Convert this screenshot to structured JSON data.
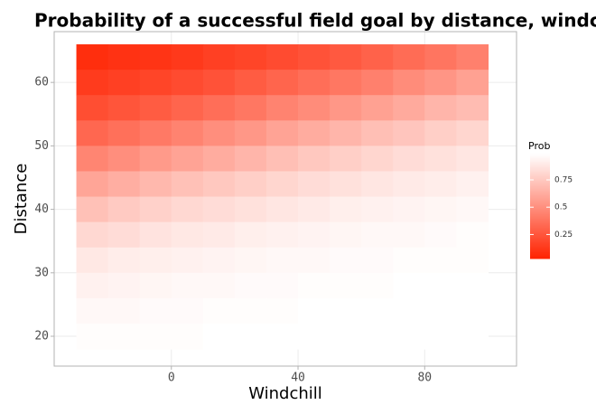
{
  "chart_data": {
    "type": "heatmap",
    "title": "Probability of a successful field goal by distance, windchill",
    "x_label": "Windchill",
    "y_label": "Distance",
    "legend_title": "Prob",
    "x": [
      -25,
      -15,
      -5,
      5,
      15,
      25,
      35,
      45,
      55,
      65,
      75,
      85,
      95
    ],
    "y": [
      64,
      60,
      56,
      52,
      48,
      44,
      40,
      36,
      32,
      28,
      24,
      20
    ],
    "values": [
      [
        0.08,
        0.1,
        0.11,
        0.13,
        0.16,
        0.18,
        0.21,
        0.24,
        0.27,
        0.31,
        0.35,
        0.39,
        0.44
      ],
      [
        0.14,
        0.16,
        0.18,
        0.21,
        0.24,
        0.28,
        0.32,
        0.36,
        0.4,
        0.44,
        0.49,
        0.53,
        0.58
      ],
      [
        0.22,
        0.25,
        0.28,
        0.32,
        0.36,
        0.4,
        0.45,
        0.49,
        0.54,
        0.58,
        0.62,
        0.67,
        0.7
      ],
      [
        0.33,
        0.37,
        0.41,
        0.45,
        0.5,
        0.54,
        0.59,
        0.63,
        0.67,
        0.71,
        0.74,
        0.78,
        0.81
      ],
      [
        0.46,
        0.5,
        0.55,
        0.59,
        0.63,
        0.67,
        0.71,
        0.75,
        0.78,
        0.81,
        0.84,
        0.86,
        0.88
      ],
      [
        0.6,
        0.64,
        0.68,
        0.72,
        0.75,
        0.78,
        0.81,
        0.84,
        0.86,
        0.88,
        0.9,
        0.91,
        0.93
      ],
      [
        0.72,
        0.76,
        0.79,
        0.82,
        0.84,
        0.86,
        0.88,
        0.9,
        0.92,
        0.93,
        0.94,
        0.95,
        0.96
      ],
      [
        0.82,
        0.84,
        0.87,
        0.89,
        0.9,
        0.92,
        0.93,
        0.94,
        0.95,
        0.96,
        0.96,
        0.97,
        0.98
      ],
      [
        0.89,
        0.91,
        0.92,
        0.93,
        0.94,
        0.95,
        0.96,
        0.96,
        0.97,
        0.97,
        0.98,
        0.98,
        0.98
      ],
      [
        0.93,
        0.94,
        0.95,
        0.96,
        0.96,
        0.97,
        0.97,
        0.98,
        0.98,
        0.98,
        0.99,
        0.99,
        0.99
      ],
      [
        0.96,
        0.96,
        0.97,
        0.97,
        0.98,
        0.98,
        0.98,
        0.99,
        0.99,
        0.99,
        0.99,
        0.99,
        0.99
      ],
      [
        0.98,
        0.98,
        0.98,
        0.98,
        0.99,
        0.99,
        0.99,
        0.99,
        0.99,
        0.99,
        0.99,
        0.99,
        0.99
      ]
    ],
    "xlim": [
      -37,
      109
    ],
    "ylim": [
      15.3,
      68
    ],
    "xticks": [
      0,
      40,
      80
    ],
    "yticks": [
      20,
      30,
      40,
      50,
      60
    ],
    "colorlim": [
      0.03,
      0.99
    ],
    "colorticks": [
      0.25,
      0.5,
      0.75
    ],
    "colors": [
      "#ff2200",
      "#ffffff"
    ],
    "grid": true
  }
}
